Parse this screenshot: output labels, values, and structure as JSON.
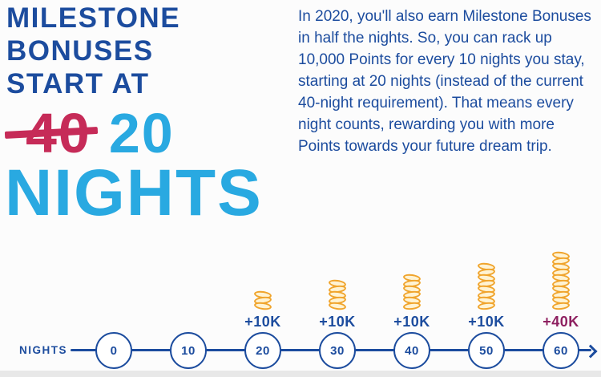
{
  "colors": {
    "dark_blue": "#1C4C9E",
    "light_blue": "#29A9E1",
    "crimson": "#C62B58",
    "maroon": "#8E2060",
    "gold": "#F0A42C",
    "gold_fill": "#FFF3D3",
    "background": "#FCFCFC",
    "footer_gray": "#E8E8E8"
  },
  "headline": {
    "line1": "MILESTONE",
    "line2": "BONUSES",
    "line3": "START AT",
    "old_value": "40",
    "new_value": "20",
    "unit": "NIGHTS"
  },
  "paragraph": {
    "text": "In 2020, you'll also earn Milestone Bonuses\nin half the nights. So, you can rack up\n10,000 Points for every 10 nights you stay,\nstarting at 20 nights (instead of the current\n40-night requirement). That means every\nnight counts, rewarding you with more\nPoints towards your future dream trip."
  },
  "timeline": {
    "axis_label": "NIGHTS",
    "milestones": [
      {
        "night": "0",
        "bonus": null,
        "coins": 0,
        "accent": "blue"
      },
      {
        "night": "10",
        "bonus": null,
        "coins": 0,
        "accent": "blue"
      },
      {
        "night": "20",
        "bonus": "+10K",
        "coins": 3,
        "accent": "blue"
      },
      {
        "night": "30",
        "bonus": "+10K",
        "coins": 5,
        "accent": "blue"
      },
      {
        "night": "40",
        "bonus": "+10K",
        "coins": 6,
        "accent": "blue"
      },
      {
        "night": "50",
        "bonus": "+10K",
        "coins": 8,
        "accent": "blue"
      },
      {
        "night": "60",
        "bonus": "+40K",
        "coins": 10,
        "accent": "maroon"
      }
    ]
  }
}
